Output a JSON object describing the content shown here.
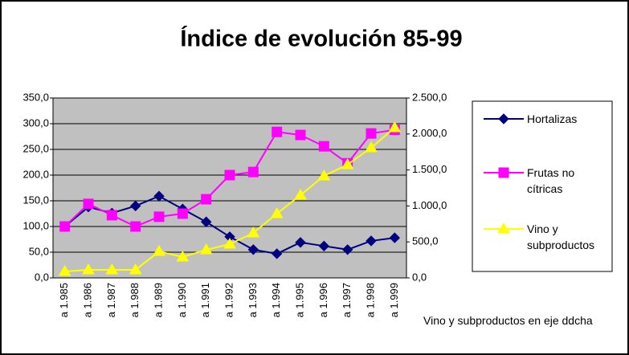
{
  "chart_data": {
    "type": "line",
    "title": "Índice de evolución 85-99",
    "annotation": "Vino y subproductos en eje ddcha",
    "categories": [
      "a 1.985",
      "a 1.986",
      "a 1.987",
      "a 1.988",
      "a 1.989",
      "a 1.990",
      "a 1.991",
      "a 1.992",
      "a 1.993",
      "a 1.994",
      "a 1.995",
      "a 1.996",
      "a 1.997",
      "a 1.998",
      "a 1.999"
    ],
    "series": [
      {
        "name": "Hortalizas",
        "color": "#000080",
        "marker": "diamond",
        "values": [
          100,
          138,
          126,
          140,
          159,
          134,
          109,
          80,
          55,
          47,
          69,
          62,
          55,
          72,
          78
        ]
      },
      {
        "name": "Frutas no cítricas",
        "color": "#ff00ff",
        "marker": "square",
        "values": [
          100,
          144,
          122,
          100,
          119,
          125,
          153,
          200,
          206,
          284,
          278,
          256,
          223,
          281,
          288
        ]
      },
      {
        "name": "Vino y subproductos",
        "color": "#ffff00",
        "marker": "triangle",
        "axis": "y2",
        "values": [
          90,
          112,
          112,
          112,
          368,
          290,
          390,
          469,
          625,
          893,
          1150,
          1417,
          1574,
          1808,
          2087
        ]
      }
    ],
    "ylim": [
      0,
      350
    ],
    "yticks": [
      {
        "value": 0,
        "label": "0,0"
      },
      {
        "value": 50,
        "label": "50,0"
      },
      {
        "value": 100,
        "label": "100,0"
      },
      {
        "value": 150,
        "label": "150,0"
      },
      {
        "value": 200,
        "label": "200,0"
      },
      {
        "value": 250,
        "label": "250,0"
      },
      {
        "value": 300,
        "label": "300,0"
      },
      {
        "value": 350,
        "label": "350,0"
      }
    ],
    "y2lim": [
      0,
      2500
    ],
    "y2ticks": [
      {
        "value": 0,
        "label": "0,0"
      },
      {
        "value": 500,
        "label": "500,0"
      },
      {
        "value": 1000,
        "label": "1.000,0"
      },
      {
        "value": 1500,
        "label": "1.500,0"
      },
      {
        "value": 2000,
        "label": "2.000,0"
      },
      {
        "value": 2500,
        "label": "2.500,0"
      }
    ],
    "grid": true,
    "plot_background": "#c0c0c0",
    "legend": "right"
  }
}
